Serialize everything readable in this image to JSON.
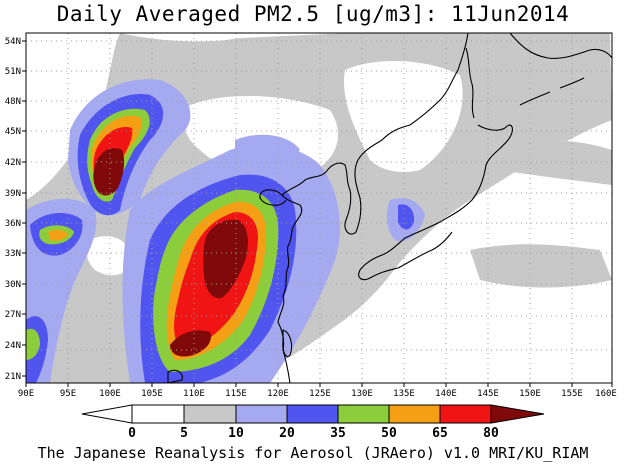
{
  "title": "Daily Averaged PM2.5 [ug/m3]: 11Jun2014",
  "credit": "The Japanese Reanalysis for Aerosol (JRAero) v1.0 MRI/KU_RIAM",
  "map": {
    "lon_ticks": [
      "90E",
      "95E",
      "100E",
      "105E",
      "110E",
      "115E",
      "120E",
      "125E",
      "130E",
      "135E",
      "140E",
      "145E",
      "150E",
      "155E",
      "160E"
    ],
    "lat_ticks": [
      "21N",
      "24N",
      "27N",
      "30N",
      "33N",
      "36N",
      "39N",
      "42N",
      "45N",
      "48N",
      "51N",
      "54N"
    ]
  },
  "colorbar": {
    "labels": [
      "0",
      "5",
      "10",
      "20",
      "35",
      "50",
      "65",
      "80"
    ],
    "colors": [
      "#ffffff",
      "#c8c8c8",
      "#a5aaf0",
      "#5055f0",
      "#8ccd3c",
      "#f5a014",
      "#f01414",
      "#800a0a"
    ]
  },
  "legend_colors": {
    "c5": "#c8c8c8",
    "c10": "#a5aaf0",
    "c20": "#5055f0",
    "c35": "#8ccd3c",
    "c50": "#f5a014",
    "c65": "#f01414",
    "c80": "#800a0a"
  }
}
